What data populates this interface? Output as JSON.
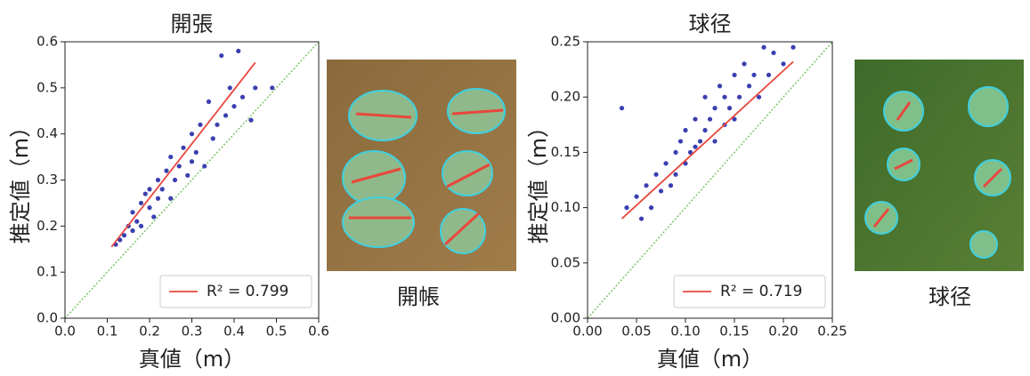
{
  "chart_data": [
    {
      "type": "scatter",
      "title": "開張",
      "xlabel": "真値（m）",
      "ylabel": "推定値（m）",
      "photo_caption": "開帳",
      "xlim": [
        0,
        0.6
      ],
      "ylim": [
        0,
        0.6
      ],
      "xticks": [
        {
          "value": 0,
          "label": "0.0"
        },
        0.1,
        0.2,
        0.3,
        0.4,
        0.5,
        0.6
      ],
      "yticks": [
        {
          "value": 0,
          "label": "0.0"
        },
        0.1,
        0.2,
        0.3,
        0.4,
        0.5,
        0.6
      ],
      "legend": "lower right",
      "series": [
        {
          "color": "#3a3fb0",
          "x": [
            0.12,
            0.13,
            0.14,
            0.15,
            0.16,
            0.16,
            0.17,
            0.18,
            0.18,
            0.19,
            0.2,
            0.2,
            0.21,
            0.22,
            0.22,
            0.23,
            0.24,
            0.25,
            0.25,
            0.26,
            0.27,
            0.28,
            0.29,
            0.3,
            0.3,
            0.31,
            0.32,
            0.33,
            0.34,
            0.35,
            0.36,
            0.37,
            0.38,
            0.39,
            0.4,
            0.41,
            0.42,
            0.44,
            0.45,
            0.49
          ],
          "values": [
            0.16,
            0.17,
            0.18,
            0.2,
            0.19,
            0.23,
            0.21,
            0.25,
            0.2,
            0.27,
            0.24,
            0.28,
            0.22,
            0.3,
            0.26,
            0.28,
            0.32,
            0.26,
            0.35,
            0.3,
            0.33,
            0.37,
            0.31,
            0.4,
            0.34,
            0.36,
            0.42,
            0.33,
            0.47,
            0.39,
            0.42,
            0.57,
            0.44,
            0.5,
            0.46,
            0.58,
            0.48,
            0.43,
            0.5,
            0.5
          ]
        },
        {
          "name": "R² = 0.799",
          "type": "line",
          "color": "#e8473c",
          "x": [
            0.11,
            0.45
          ],
          "values": [
            0.155,
            0.555
          ]
        }
      ]
    },
    {
      "type": "scatter",
      "title": "球径",
      "xlabel": "真値（m）",
      "ylabel": "推定値（m）",
      "photo_caption": "球径",
      "xlim": [
        0,
        0.25
      ],
      "ylim": [
        0,
        0.25
      ],
      "xticks": [
        {
          "value": 0,
          "label": "0.00"
        },
        0.05,
        {
          "value": 0.1,
          "label": "0.10"
        },
        0.15,
        {
          "value": 0.2,
          "label": "0.20"
        },
        0.25
      ],
      "yticks": [
        {
          "value": 0,
          "label": "0.00"
        },
        0.05,
        {
          "value": 0.1,
          "label": "0.10"
        },
        0.15,
        {
          "value": 0.2,
          "label": "0.20"
        },
        0.25
      ],
      "legend": "lower right",
      "series": [
        {
          "color": "#3a3fb0",
          "x": [
            0.035,
            0.04,
            0.05,
            0.055,
            0.06,
            0.065,
            0.07,
            0.075,
            0.08,
            0.085,
            0.09,
            0.09,
            0.095,
            0.1,
            0.1,
            0.105,
            0.11,
            0.11,
            0.115,
            0.12,
            0.12,
            0.125,
            0.13,
            0.13,
            0.135,
            0.14,
            0.14,
            0.145,
            0.15,
            0.15,
            0.155,
            0.16,
            0.165,
            0.17,
            0.175,
            0.18,
            0.185,
            0.19,
            0.2,
            0.21
          ],
          "values": [
            0.19,
            0.1,
            0.11,
            0.09,
            0.12,
            0.1,
            0.13,
            0.115,
            0.14,
            0.12,
            0.15,
            0.13,
            0.16,
            0.14,
            0.17,
            0.15,
            0.18,
            0.155,
            0.16,
            0.2,
            0.17,
            0.18,
            0.16,
            0.19,
            0.21,
            0.175,
            0.2,
            0.19,
            0.22,
            0.18,
            0.2,
            0.23,
            0.21,
            0.22,
            0.2,
            0.245,
            0.22,
            0.24,
            0.23,
            0.245
          ]
        },
        {
          "name": "R² = 0.719",
          "type": "line",
          "color": "#e8473c",
          "x": [
            0.035,
            0.21
          ],
          "values": [
            0.09,
            0.232
          ]
        }
      ]
    }
  ]
}
